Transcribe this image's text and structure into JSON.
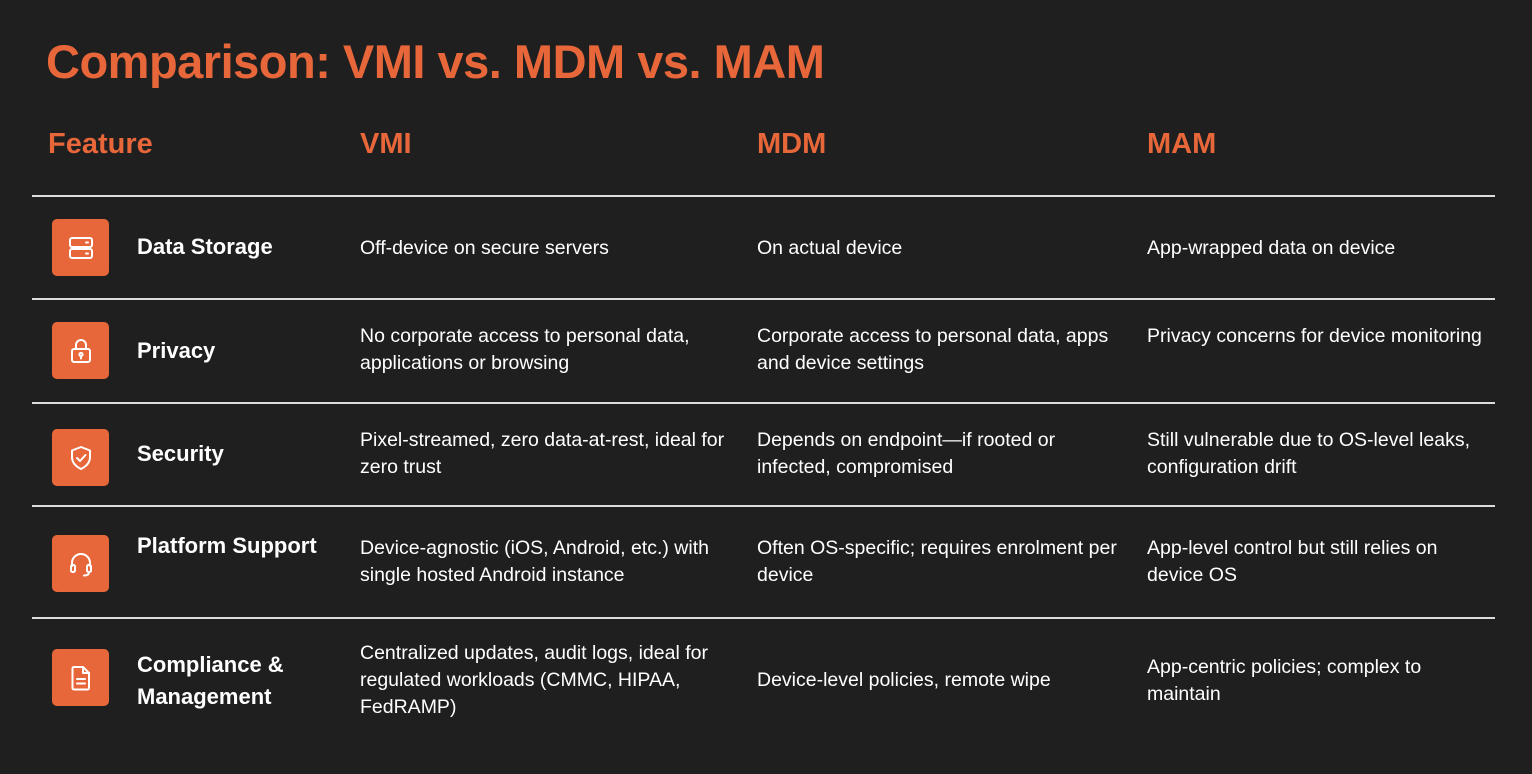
{
  "title": "Comparison: VMI vs. MDM vs. MAM",
  "colors": {
    "accent": "#e8673a",
    "background": "#1f1f1f",
    "text": "#ffffff",
    "divider": "#dcdcdc"
  },
  "headers": {
    "feature": "Feature",
    "vmi": "VMI",
    "mdm": "MDM",
    "mam": "MAM"
  },
  "rows": [
    {
      "icon": "server-icon",
      "feature": "Data Storage",
      "vmi": "Off-device on secure servers",
      "mdm": "On actual device",
      "mam": "App-wrapped data on device"
    },
    {
      "icon": "lock-icon",
      "feature": "Privacy",
      "vmi": "No corporate access to personal data, applications or browsing",
      "mdm": "Corporate access to personal data, apps and device settings",
      "mam": "Privacy concerns for device monitoring"
    },
    {
      "icon": "shield-check-icon",
      "feature": "Security",
      "vmi": "Pixel-streamed, zero data-at-rest, ideal for zero trust",
      "mdm": "Depends on endpoint—if rooted or infected, compromised",
      "mam": "Still vulnerable due to OS-level leaks, configuration drift"
    },
    {
      "icon": "headset-icon",
      "feature": "Platform Support",
      "vmi": "Device-agnostic (iOS, Android, etc.) with single hosted Android instance",
      "mdm": "Often OS-specific; requires enrolment per device",
      "mam": "App-level control but still relies on device OS"
    },
    {
      "icon": "document-icon",
      "feature": "Compliance & Management",
      "vmi": "Centralized updates, audit logs, ideal for regulated workloads (CMMC, HIPAA, FedRAMP)",
      "mdm": "Device-level policies, remote wipe",
      "mam": "App-centric policies; complex to maintain"
    }
  ]
}
